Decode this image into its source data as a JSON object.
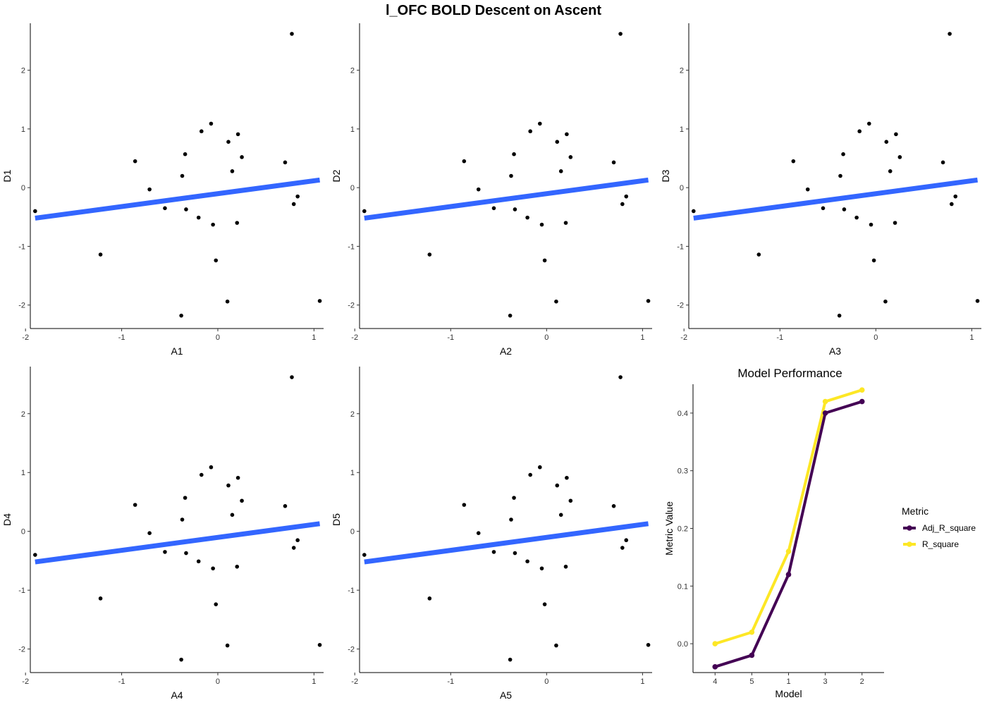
{
  "title": "l_OFC BOLD Descent on Ascent",
  "chart_data": [
    {
      "type": "scatter",
      "xlabel": "A1",
      "ylabel": "D1",
      "xlim": [
        -1.95,
        1.1
      ],
      "ylim": [
        -2.4,
        2.8
      ],
      "xticks": [
        "-2",
        "-1",
        "0",
        "1"
      ],
      "xtick_values": [
        -2,
        -1,
        0,
        1
      ],
      "yticks": [
        "-2",
        "-1",
        "0",
        "1",
        "2"
      ],
      "ytick_values": [
        -2,
        -1,
        0,
        1,
        2
      ],
      "points_ref": "points",
      "fit": {
        "x": [
          -1.9,
          1.06
        ],
        "y": [
          -0.52,
          0.13
        ],
        "color": "#3366ff"
      }
    },
    {
      "type": "scatter",
      "xlabel": "A2",
      "ylabel": "D2",
      "xlim": [
        -1.95,
        1.1
      ],
      "ylim": [
        -2.4,
        2.8
      ],
      "xticks": [
        "-2",
        "-1",
        "0",
        "1"
      ],
      "xtick_values": [
        -2,
        -1,
        0,
        1
      ],
      "yticks": [
        "-2",
        "-1",
        "0",
        "1",
        "2"
      ],
      "ytick_values": [
        -2,
        -1,
        0,
        1,
        2
      ],
      "points_ref": "points",
      "fit": {
        "x": [
          -1.9,
          1.06
        ],
        "y": [
          -0.52,
          0.13
        ],
        "color": "#3366ff"
      }
    },
    {
      "type": "scatter",
      "xlabel": "A3",
      "ylabel": "D3",
      "xlim": [
        -1.95,
        1.1
      ],
      "ylim": [
        -2.4,
        2.8
      ],
      "xticks": [
        "-2",
        "-1",
        "0",
        "1"
      ],
      "xtick_values": [
        -2,
        -1,
        0,
        1
      ],
      "yticks": [
        "-2",
        "-1",
        "0",
        "1",
        "2"
      ],
      "ytick_values": [
        -2,
        -1,
        0,
        1,
        2
      ],
      "points_ref": "points",
      "fit": {
        "x": [
          -1.9,
          1.06
        ],
        "y": [
          -0.52,
          0.13
        ],
        "color": "#3366ff"
      }
    },
    {
      "type": "scatter",
      "xlabel": "A4",
      "ylabel": "D4",
      "xlim": [
        -1.95,
        1.1
      ],
      "ylim": [
        -2.4,
        2.8
      ],
      "xticks": [
        "-2",
        "-1",
        "0",
        "1"
      ],
      "xtick_values": [
        -2,
        -1,
        0,
        1
      ],
      "yticks": [
        "-2",
        "-1",
        "0",
        "1",
        "2"
      ],
      "ytick_values": [
        -2,
        -1,
        0,
        1,
        2
      ],
      "points_ref": "points",
      "fit": {
        "x": [
          -1.9,
          1.06
        ],
        "y": [
          -0.52,
          0.13
        ],
        "color": "#3366ff"
      }
    },
    {
      "type": "scatter",
      "xlabel": "A5",
      "ylabel": "D5",
      "xlim": [
        -1.95,
        1.1
      ],
      "ylim": [
        -2.4,
        2.8
      ],
      "xticks": [
        "-2",
        "-1",
        "0",
        "1"
      ],
      "xtick_values": [
        -2,
        -1,
        0,
        1
      ],
      "yticks": [
        "-2",
        "-1",
        "0",
        "1",
        "2"
      ],
      "ytick_values": [
        -2,
        -1,
        0,
        1,
        2
      ],
      "points_ref": "points",
      "fit": {
        "x": [
          -1.9,
          1.06
        ],
        "y": [
          -0.52,
          0.13
        ],
        "color": "#3366ff"
      }
    },
    {
      "type": "line",
      "title": "Model Performance",
      "xlabel": "Model",
      "ylabel": "Metric Value",
      "categories": [
        "4",
        "5",
        "1",
        "3",
        "2"
      ],
      "ylim": [
        -0.05,
        0.45
      ],
      "yticks": [
        "0.0",
        "0.1",
        "0.2",
        "0.3",
        "0.4"
      ],
      "ytick_values": [
        0.0,
        0.1,
        0.2,
        0.3,
        0.4
      ],
      "legend_title": "Metric",
      "legend_position": "right",
      "series": [
        {
          "name": "Adj_R_square",
          "values": [
            -0.04,
            -0.02,
            0.12,
            0.4,
            0.42
          ],
          "color": "#440154"
        },
        {
          "name": "R_square",
          "values": [
            0.0,
            0.02,
            0.16,
            0.42,
            0.44
          ],
          "color": "#fde725"
        }
      ]
    }
  ],
  "points": [
    [
      -1.9,
      -0.4
    ],
    [
      -1.22,
      -1.14
    ],
    [
      -0.86,
      0.45
    ],
    [
      -0.71,
      -0.03
    ],
    [
      -0.55,
      -0.35
    ],
    [
      -0.38,
      -2.18
    ],
    [
      -0.37,
      0.2
    ],
    [
      -0.34,
      0.57
    ],
    [
      -0.33,
      -0.37
    ],
    [
      -0.2,
      -0.51
    ],
    [
      -0.17,
      0.96
    ],
    [
      -0.07,
      1.09
    ],
    [
      -0.05,
      -0.63
    ],
    [
      -0.02,
      -1.24
    ],
    [
      0.1,
      -1.94
    ],
    [
      0.11,
      0.78
    ],
    [
      0.15,
      0.28
    ],
    [
      0.2,
      -0.6
    ],
    [
      0.21,
      0.91
    ],
    [
      0.25,
      0.52
    ],
    [
      0.7,
      0.43
    ],
    [
      0.77,
      2.62
    ],
    [
      0.79,
      -0.28
    ],
    [
      0.83,
      -0.15
    ],
    [
      1.06,
      -1.93
    ]
  ]
}
